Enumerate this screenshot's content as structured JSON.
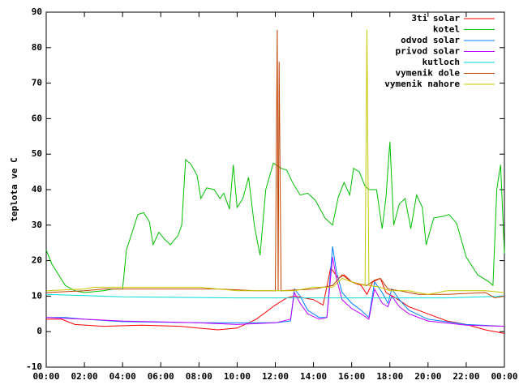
{
  "chart_data": {
    "type": "line",
    "ylabel": "teplota ve C",
    "xlim": [
      0,
      24
    ],
    "ylim": [
      -10,
      90
    ],
    "xticks": [
      {
        "value": 0,
        "label": "00:00"
      },
      {
        "value": 2,
        "label": "02:00"
      },
      {
        "value": 4,
        "label": "04:00"
      },
      {
        "value": 6,
        "label": "06:00"
      },
      {
        "value": 8,
        "label": "08:00"
      },
      {
        "value": 10,
        "label": "10:00"
      },
      {
        "value": 12,
        "label": "12:00"
      },
      {
        "value": 14,
        "label": "14:00"
      },
      {
        "value": 16,
        "label": "16:00"
      },
      {
        "value": 18,
        "label": "18:00"
      },
      {
        "value": 20,
        "label": "20:00"
      },
      {
        "value": 22,
        "label": "22:00"
      },
      {
        "value": 24,
        "label": "00:00"
      }
    ],
    "yticks": [
      -10,
      0,
      10,
      20,
      30,
      40,
      50,
      60,
      70,
      80,
      90
    ],
    "legend": "top-right",
    "series": [
      {
        "name": "3ti solar",
        "color": "#ff0000",
        "x": [
          0,
          0.8,
          1.5,
          3,
          5,
          7,
          9,
          10,
          11,
          12,
          12.6,
          13,
          14,
          14.5,
          14.9,
          15.3,
          15.6,
          16,
          16.5,
          16.8,
          17.1,
          17.5,
          17.8,
          18.3,
          19,
          20,
          21,
          22,
          23,
          24
        ],
        "values": [
          3.5,
          3.5,
          2,
          1.5,
          1.8,
          1.5,
          0.5,
          1,
          3.5,
          7.5,
          9.5,
          10,
          9,
          7.5,
          18,
          15,
          16,
          14,
          13,
          10.5,
          14,
          15,
          11,
          9.5,
          7,
          5,
          3,
          2,
          0.5,
          -0.5
        ]
      },
      {
        "name": "kotel",
        "color": "#00c000",
        "x": [
          0,
          0.3,
          1,
          1.5,
          2,
          3,
          3.5,
          4,
          4.2,
          4.8,
          5.1,
          5.4,
          5.6,
          5.9,
          6.2,
          6.5,
          6.9,
          7.1,
          7.3,
          7.6,
          7.9,
          8.1,
          8.4,
          8.8,
          9.1,
          9.3,
          9.6,
          9.8,
          10,
          10.3,
          10.6,
          10.9,
          11.2,
          11.5,
          11.9,
          12.3,
          12.6,
          12.9,
          13.3,
          13.7,
          14.1,
          14.6,
          15,
          15.3,
          15.6,
          15.9,
          16.1,
          16.4,
          16.7,
          16.9,
          17.3,
          17.6,
          17.8,
          18,
          18.2,
          18.5,
          18.8,
          19.1,
          19.4,
          19.7,
          19.9,
          20.3,
          20.8,
          21.1,
          21.5,
          22,
          22.6,
          23.2,
          23.4,
          23.6,
          23.8,
          24
        ],
        "values": [
          23,
          19,
          13,
          11.5,
          11,
          11.5,
          12,
          12,
          23,
          33,
          33.5,
          31,
          24.5,
          28,
          26,
          24.5,
          27,
          30,
          48.5,
          47,
          44,
          37.5,
          40.5,
          40,
          37.5,
          39,
          34.5,
          47,
          35,
          37.5,
          43.5,
          30,
          21.5,
          40,
          47.5,
          46,
          45.5,
          42,
          38.5,
          39,
          37,
          32,
          30,
          38,
          42,
          38.5,
          46,
          45,
          41,
          40,
          40,
          29,
          38,
          53.5,
          30,
          36,
          37.5,
          29,
          38.5,
          35,
          24.5,
          32,
          32.5,
          33,
          30.5,
          21,
          16,
          14,
          13,
          40,
          47,
          22
        ]
      },
      {
        "name": "odvod solar",
        "color": "#0080ff",
        "x": [
          0,
          1,
          2,
          4,
          8,
          12,
          12.8,
          13,
          13.3,
          13.7,
          14.3,
          14.7,
          15,
          15.2,
          15.5,
          16,
          16.5,
          16.9,
          17.2,
          17.6,
          17.9,
          18.1,
          18.5,
          19,
          20,
          22,
          24
        ],
        "values": [
          4,
          4,
          3.5,
          2.8,
          2.5,
          2.5,
          3,
          12,
          10,
          6,
          4,
          4,
          24,
          17,
          11,
          8,
          6,
          4,
          14,
          11,
          8,
          12,
          9,
          6,
          3.5,
          2,
          1.5
        ]
      },
      {
        "name": "privod solar",
        "color": "#c000ff",
        "x": [
          0,
          2,
          4,
          8,
          10,
          12,
          12.8,
          13,
          13.3,
          13.7,
          14.3,
          14.7,
          15,
          15.2,
          15.5,
          16,
          16.5,
          16.9,
          17.2,
          17.6,
          17.9,
          18.1,
          18.5,
          19,
          20,
          22,
          24
        ],
        "values": [
          4,
          3.5,
          3,
          2.5,
          2,
          2.5,
          3.5,
          11,
          8,
          5,
          3.5,
          4,
          21,
          15,
          9,
          6.5,
          5,
          3.5,
          12,
          8,
          7,
          10,
          7,
          5,
          3,
          1.8,
          1.5
        ]
      },
      {
        "name": "kutloch",
        "color": "#00dddd",
        "x": [
          0,
          4,
          10,
          17,
          21,
          24
        ],
        "values": [
          10.5,
          9.8,
          9.5,
          9.5,
          9.5,
          10
        ]
      },
      {
        "name": "vymenik dole",
        "color": "#c04000",
        "x": [
          0,
          2,
          3,
          6,
          9,
          11,
          12,
          12.1,
          12.15,
          12.2,
          12.3,
          14,
          15,
          15.5,
          16,
          16.8,
          17.2,
          17.5,
          17.9,
          18.5,
          19.5,
          21,
          23,
          23.5,
          24
        ],
        "values": [
          11,
          11.5,
          12,
          12,
          12,
          11.5,
          11.5,
          85,
          11.5,
          76,
          11.5,
          12,
          13,
          16,
          14,
          13,
          14.5,
          15,
          12,
          11.5,
          10.5,
          10.5,
          11,
          9.5,
          10
        ]
      },
      {
        "name": "vymenik nahore",
        "color": "#c8c800",
        "x": [
          0,
          2,
          2.5,
          4,
          8,
          10,
          12,
          13,
          14,
          15,
          15.5,
          16,
          16.7,
          16.8,
          16.9,
          17.5,
          18,
          19,
          20,
          21,
          23,
          24
        ],
        "values": [
          11.5,
          12,
          12.5,
          12.5,
          12.5,
          11.5,
          11.5,
          11.5,
          12.5,
          12.5,
          15,
          14,
          13,
          85,
          13,
          12.5,
          11.5,
          11.5,
          10.5,
          11.5,
          11.5,
          11
        ]
      }
    ]
  }
}
